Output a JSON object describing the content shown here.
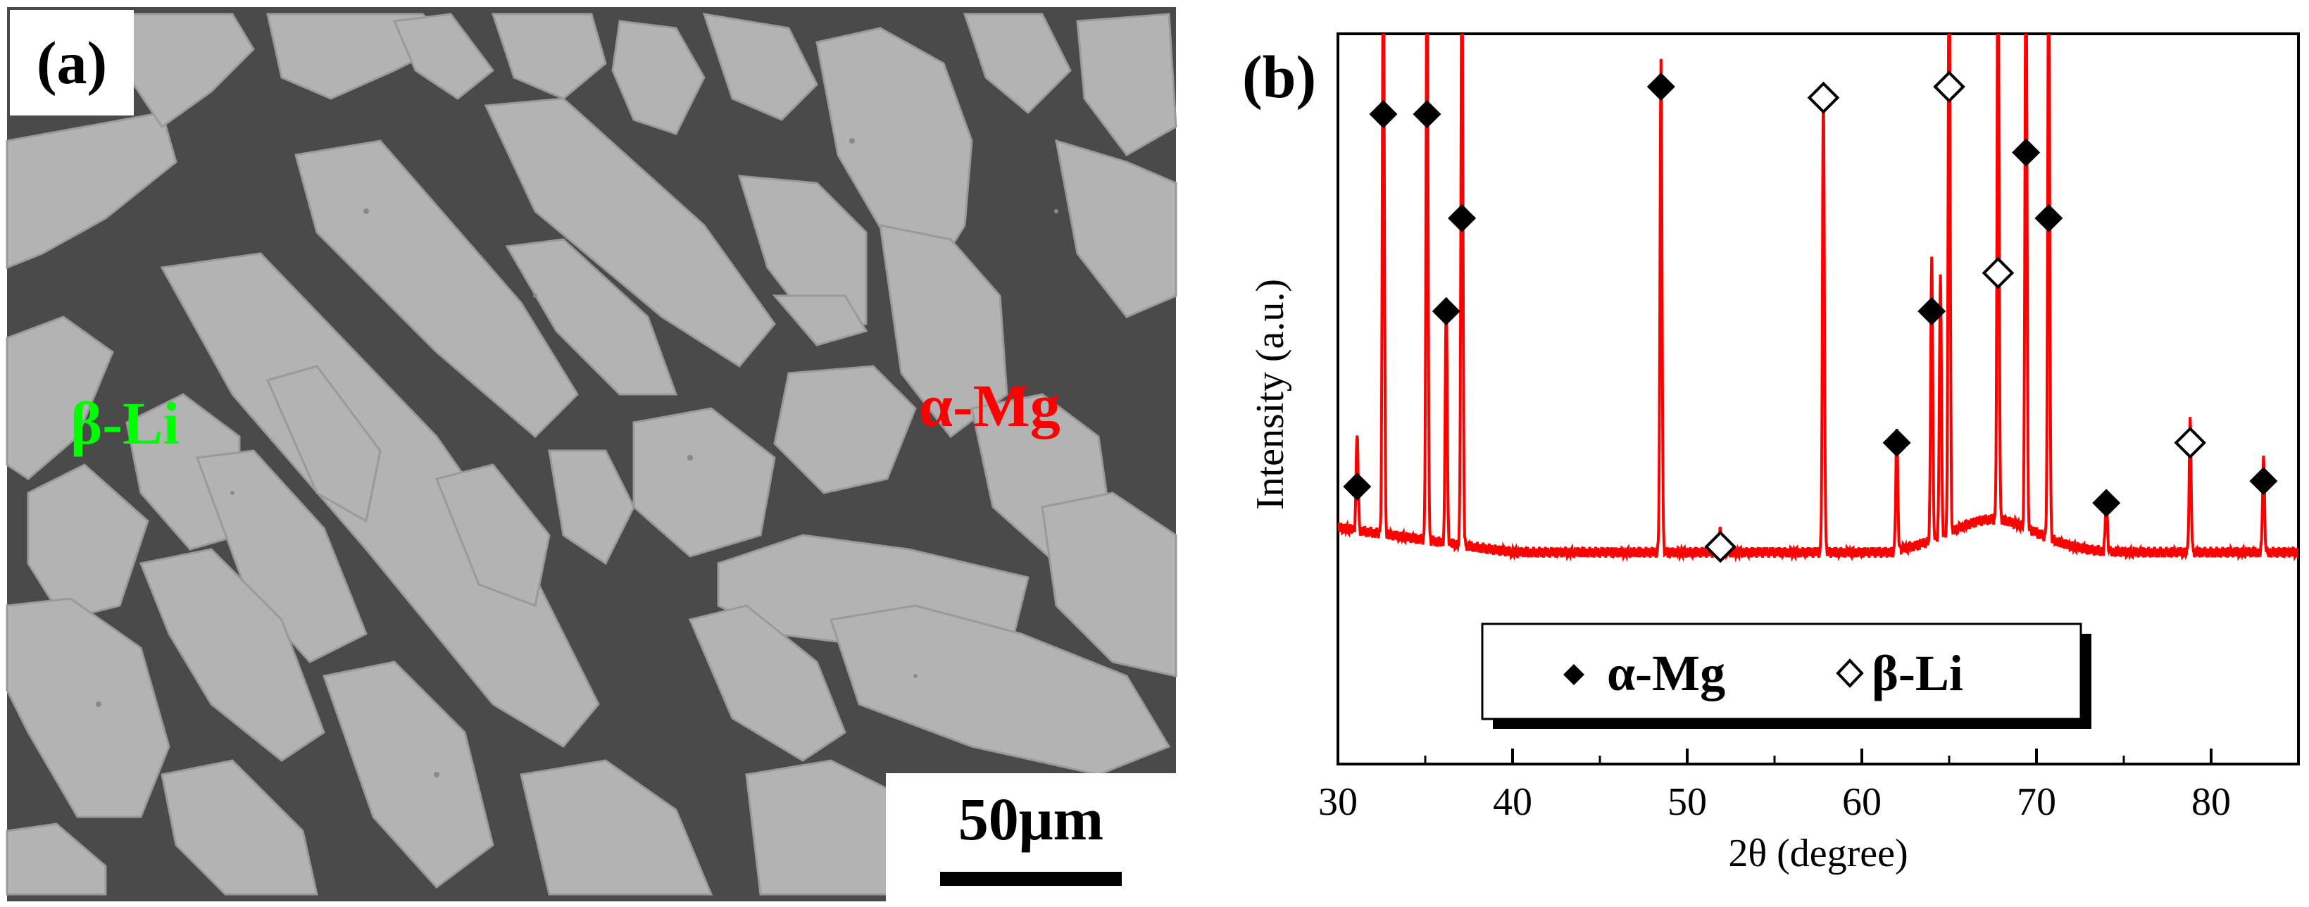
{
  "panel_a": {
    "label": "(a)",
    "phase_beta": "β-Li",
    "phase_alpha": "α-Mg",
    "scale_bar": "50μm",
    "colors": {
      "matrix": "#4a4a4a",
      "grain": "#b4b4b4",
      "beta_label": "#00ff00",
      "alpha_label": "#ff0000"
    }
  },
  "chart_data": {
    "type": "line",
    "panel_label": "(b)",
    "xlabel": "2θ (degree)",
    "ylabel": "Intensity (a.u.)",
    "xlim": [
      30,
      85
    ],
    "ylim": [
      0,
      100
    ],
    "x_ticks": [
      30,
      40,
      50,
      60,
      70,
      80
    ],
    "line_color": "#ff0000",
    "baseline": 12,
    "peaks": [
      {
        "x": 31.1,
        "h": 18
      },
      {
        "x": 32.6,
        "h": 110
      },
      {
        "x": 35.1,
        "h": 110
      },
      {
        "x": 36.2,
        "h": 45
      },
      {
        "x": 37.1,
        "h": 110
      },
      {
        "x": 48.5,
        "h": 90
      },
      {
        "x": 51.9,
        "h": 4
      },
      {
        "x": 57.8,
        "h": 83
      },
      {
        "x": 62.0,
        "h": 22
      },
      {
        "x": 64.0,
        "h": 52
      },
      {
        "x": 64.5,
        "h": 48
      },
      {
        "x": 65.0,
        "h": 110
      },
      {
        "x": 67.8,
        "h": 110
      },
      {
        "x": 69.4,
        "h": 110
      },
      {
        "x": 70.7,
        "h": 110
      },
      {
        "x": 74.0,
        "h": 10
      },
      {
        "x": 78.8,
        "h": 24
      },
      {
        "x": 83.0,
        "h": 17
      }
    ],
    "markers": [
      {
        "x": 31.1,
        "y": 24,
        "phase": "alpha"
      },
      {
        "x": 32.6,
        "y": 92,
        "phase": "alpha"
      },
      {
        "x": 35.1,
        "y": 92,
        "phase": "alpha"
      },
      {
        "x": 36.2,
        "y": 56,
        "phase": "alpha"
      },
      {
        "x": 37.1,
        "y": 73,
        "phase": "alpha"
      },
      {
        "x": 48.5,
        "y": 97,
        "phase": "alpha"
      },
      {
        "x": 51.9,
        "y": 13,
        "phase": "beta"
      },
      {
        "x": 57.8,
        "y": 95,
        "phase": "beta"
      },
      {
        "x": 62.0,
        "y": 32,
        "phase": "alpha"
      },
      {
        "x": 64.0,
        "y": 56,
        "phase": "alpha"
      },
      {
        "x": 65.0,
        "y": 97,
        "phase": "beta"
      },
      {
        "x": 67.8,
        "y": 63,
        "phase": "beta"
      },
      {
        "x": 69.4,
        "y": 85,
        "phase": "alpha"
      },
      {
        "x": 70.7,
        "y": 73,
        "phase": "alpha"
      },
      {
        "x": 74.0,
        "y": 21,
        "phase": "alpha"
      },
      {
        "x": 78.8,
        "y": 32,
        "phase": "beta"
      },
      {
        "x": 83.0,
        "y": 25,
        "phase": "alpha"
      }
    ],
    "legend": [
      {
        "label": "α-Mg",
        "marker": "filled-diamond"
      },
      {
        "label": "β-Li",
        "marker": "open-diamond"
      }
    ],
    "legend_position": "bottom-center"
  }
}
